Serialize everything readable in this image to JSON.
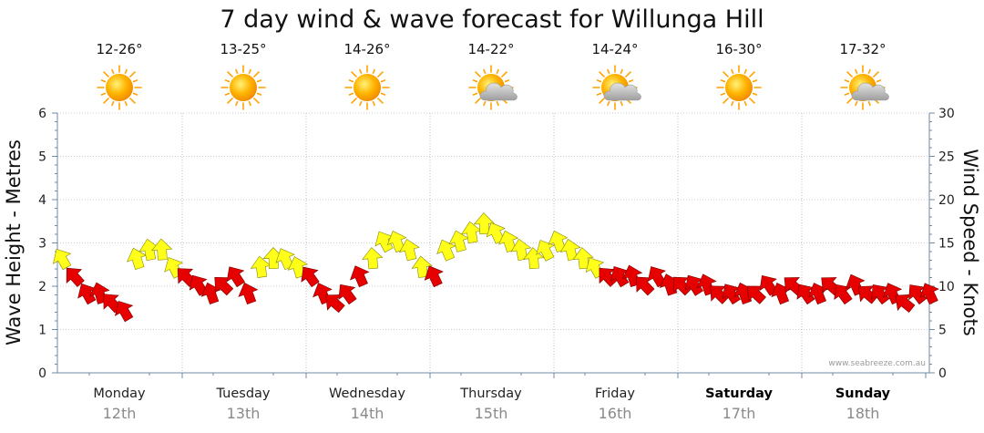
{
  "chart_data": {
    "type": "line",
    "title": "7 day wind & wave forecast for Willunga Hill",
    "ylabel": "Wave Height - Metres",
    "y2label": "Wind Speed - Knots",
    "ylim": [
      0,
      6
    ],
    "y2lim": [
      0,
      30
    ],
    "yticks": [
      "0",
      "1",
      "2",
      "3",
      "4",
      "5",
      "6"
    ],
    "y2ticks": [
      "0",
      "5",
      "10",
      "15",
      "20",
      "25",
      "30"
    ],
    "grid": true,
    "credit": "www.seabreeze.com.au",
    "days": [
      {
        "name": "Monday",
        "date": "12th",
        "temp": "12-26°",
        "weather": "sunny",
        "bold": false
      },
      {
        "name": "Tuesday",
        "date": "13th",
        "temp": "13-25°",
        "weather": "sunny",
        "bold": false
      },
      {
        "name": "Wednesday",
        "date": "14th",
        "temp": "14-26°",
        "weather": "sunny",
        "bold": false
      },
      {
        "name": "Thursday",
        "date": "15th",
        "temp": "14-22°",
        "weather": "partly-cloudy",
        "bold": false
      },
      {
        "name": "Friday",
        "date": "16th",
        "temp": "14-24°",
        "weather": "partly-cloudy",
        "bold": false
      },
      {
        "name": "Saturday",
        "date": "17th",
        "temp": "16-30°",
        "weather": "sunny",
        "bold": true
      },
      {
        "name": "Sunday",
        "date": "18th",
        "temp": "17-32°",
        "weather": "partly-cloudy",
        "bold": true
      }
    ],
    "wind_series": {
      "name": "Wind Speed - Knots",
      "x_unit": "day index (0 = Monday start)",
      "x": [
        0.0,
        0.1,
        0.2,
        0.3,
        0.4,
        0.5,
        0.6,
        0.7,
        0.8,
        0.9,
        1.0,
        1.1,
        1.2,
        1.3,
        1.4,
        1.5,
        1.6,
        1.7,
        1.8,
        1.9,
        2.0,
        2.1,
        2.2,
        2.3,
        2.4,
        2.5,
        2.6,
        2.7,
        2.8,
        2.9,
        3.0,
        3.1,
        3.2,
        3.3,
        3.4,
        3.5,
        3.6,
        3.7,
        3.8,
        3.9,
        4.0,
        4.1,
        4.2,
        4.3,
        4.4,
        4.5,
        4.6,
        4.7,
        4.8,
        4.9,
        5.0,
        5.1,
        5.2,
        5.3,
        5.4,
        5.5,
        5.6,
        5.7,
        5.8,
        5.9,
        6.0,
        6.1,
        6.2,
        6.3,
        6.4,
        6.5,
        6.6,
        6.7,
        6.8,
        6.9,
        7.0
      ],
      "values": [
        13,
        11,
        9,
        9,
        8,
        7,
        13,
        14,
        14,
        12,
        11,
        10,
        9,
        10,
        11,
        9,
        12,
        13,
        13,
        12,
        11,
        9,
        8,
        9,
        11,
        13,
        15,
        15,
        14,
        12,
        11,
        14,
        15,
        16,
        17,
        16,
        15,
        14,
        13,
        14,
        15,
        14,
        13,
        12,
        11,
        11,
        11,
        10,
        11,
        10,
        10,
        10,
        10,
        9,
        9,
        9,
        9,
        10,
        9,
        10,
        9,
        9,
        10,
        9,
        10,
        9,
        9,
        9,
        8,
        9,
        9
      ],
      "colors": {
        "strong": "#ffff1a",
        "light": "#e60000"
      },
      "threshold_knots": 12
    }
  },
  "colors": {
    "grid": "#9a9a9a",
    "axis": "#6f8aa3",
    "sun": "#ffa200",
    "cloud": "#bdbdbd"
  }
}
